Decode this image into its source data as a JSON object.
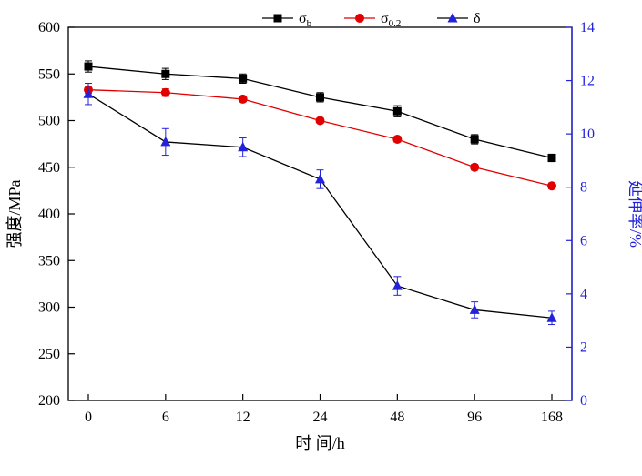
{
  "chart_data": {
    "type": "line",
    "title": "",
    "categories": [
      "0",
      "6",
      "12",
      "24",
      "48",
      "96",
      "168"
    ],
    "xlabel": "时 间/h",
    "left_axis": {
      "label": "强度/MPa",
      "min": 200,
      "max": 600,
      "tick_step": 50,
      "color": "#000000"
    },
    "right_axis": {
      "label": "延伸率/%",
      "min": 0,
      "max": 14,
      "tick_step": 2,
      "color": "#2222dd"
    },
    "grid": "off",
    "legend_position": "top-center",
    "series": [
      {
        "id": "sigma-b",
        "label_base": "σ",
        "label_sub": "b",
        "axis": "left",
        "marker": "square",
        "color": "#000000",
        "line_color": "#000000",
        "values": [
          558,
          550,
          545,
          525,
          510,
          480,
          460
        ],
        "errors": [
          6,
          6,
          5,
          5,
          6,
          5,
          4
        ]
      },
      {
        "id": "sigma-0-2",
        "label_base": "σ",
        "label_sub": "0.2",
        "axis": "left",
        "marker": "circle",
        "color": "#e00000",
        "line_color": "#e00000",
        "values": [
          533,
          530,
          523,
          500,
          480,
          450,
          430
        ],
        "errors": [
          4,
          4,
          3,
          3,
          3,
          3,
          3
        ]
      },
      {
        "id": "delta",
        "label_base": "δ",
        "label_sub": "",
        "axis": "right",
        "marker": "triangle",
        "color": "#2222dd",
        "line_color": "#000000",
        "values": [
          11.5,
          9.7,
          9.5,
          8.3,
          4.3,
          3.4,
          3.1
        ],
        "errors": [
          0.4,
          0.5,
          0.35,
          0.35,
          0.35,
          0.3,
          0.25
        ]
      }
    ]
  }
}
